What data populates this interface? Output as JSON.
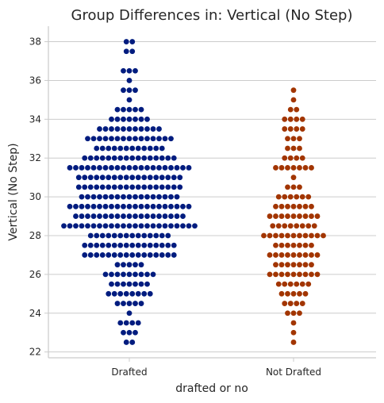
{
  "chart_data": {
    "type": "scatter",
    "subtype": "swarm",
    "title": "Group Differences in: Vertical (No Step)",
    "xlabel": "drafted or no",
    "ylabel": "Vertical (No Step)",
    "ylim": [
      21.7,
      38.8
    ],
    "yticks": [
      22,
      24,
      26,
      28,
      30,
      32,
      34,
      36,
      38
    ],
    "grid": "horizontal",
    "categories": [
      "Drafted",
      "Not Drafted"
    ],
    "series": [
      {
        "color": "#001c7f",
        "counts": [
          {
            "y": 38,
            "n": 2
          },
          {
            "y": 37.5,
            "n": 2
          },
          {
            "y": 36.5,
            "n": 3
          },
          {
            "y": 36,
            "n": 1
          },
          {
            "y": 35.5,
            "n": 3
          },
          {
            "y": 35,
            "n": 1
          },
          {
            "y": 34.5,
            "n": 5
          },
          {
            "y": 34,
            "n": 7
          },
          {
            "y": 33.5,
            "n": 11
          },
          {
            "y": 33,
            "n": 15
          },
          {
            "y": 32.5,
            "n": 12
          },
          {
            "y": 32,
            "n": 16
          },
          {
            "y": 31.5,
            "n": 21
          },
          {
            "y": 31,
            "n": 18
          },
          {
            "y": 30.5,
            "n": 18
          },
          {
            "y": 30,
            "n": 17
          },
          {
            "y": 29.5,
            "n": 21
          },
          {
            "y": 29,
            "n": 19
          },
          {
            "y": 28.5,
            "n": 23
          },
          {
            "y": 28,
            "n": 14
          },
          {
            "y": 27.5,
            "n": 16
          },
          {
            "y": 27,
            "n": 16
          },
          {
            "y": 26.5,
            "n": 5
          },
          {
            "y": 26,
            "n": 9
          },
          {
            "y": 25.5,
            "n": 7
          },
          {
            "y": 25,
            "n": 8
          },
          {
            "y": 24.5,
            "n": 5
          },
          {
            "y": 24,
            "n": 1
          },
          {
            "y": 23.5,
            "n": 4
          },
          {
            "y": 23,
            "n": 3
          },
          {
            "y": 22.5,
            "n": 2
          }
        ]
      },
      {
        "color": "#a23500",
        "counts": [
          {
            "y": 35.5,
            "n": 1
          },
          {
            "y": 35,
            "n": 1
          },
          {
            "y": 34.5,
            "n": 2
          },
          {
            "y": 34,
            "n": 4
          },
          {
            "y": 33.5,
            "n": 4
          },
          {
            "y": 33,
            "n": 3
          },
          {
            "y": 32.5,
            "n": 3
          },
          {
            "y": 32,
            "n": 4
          },
          {
            "y": 31.5,
            "n": 7
          },
          {
            "y": 31,
            "n": 1
          },
          {
            "y": 30.5,
            "n": 3
          },
          {
            "y": 30,
            "n": 6
          },
          {
            "y": 29.5,
            "n": 7
          },
          {
            "y": 29,
            "n": 9
          },
          {
            "y": 28.5,
            "n": 8
          },
          {
            "y": 28,
            "n": 11
          },
          {
            "y": 27.5,
            "n": 7
          },
          {
            "y": 27,
            "n": 9
          },
          {
            "y": 26.5,
            "n": 7
          },
          {
            "y": 26,
            "n": 9
          },
          {
            "y": 25.5,
            "n": 6
          },
          {
            "y": 25,
            "n": 5
          },
          {
            "y": 24.5,
            "n": 4
          },
          {
            "y": 24,
            "n": 3
          },
          {
            "y": 23.5,
            "n": 1
          },
          {
            "y": 23,
            "n": 1
          },
          {
            "y": 22.5,
            "n": 1
          }
        ]
      }
    ]
  }
}
